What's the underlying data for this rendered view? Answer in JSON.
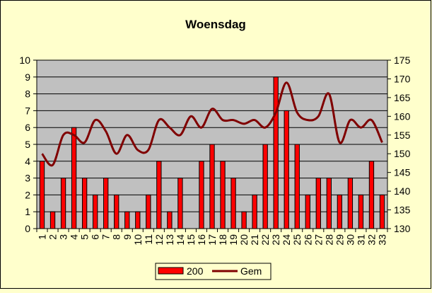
{
  "chart_data": {
    "type": "bar",
    "title": "Woensdag",
    "categories": [
      "1",
      "2",
      "3",
      "4",
      "5",
      "6",
      "7",
      "8",
      "9",
      "10",
      "11",
      "12",
      "13",
      "14",
      "15",
      "16",
      "17",
      "18",
      "19",
      "20",
      "21",
      "22",
      "23",
      "24",
      "25",
      "26",
      "27",
      "28",
      "29",
      "30",
      "31",
      "32",
      "33"
    ],
    "series": [
      {
        "name": "200",
        "type": "bar",
        "axis": "left",
        "values": [
          4,
          1,
          3,
          6,
          3,
          2,
          3,
          2,
          1,
          1,
          2,
          4,
          1,
          3,
          0,
          4,
          5,
          4,
          3,
          1,
          2,
          5,
          9,
          7,
          5,
          2,
          3,
          3,
          2,
          3,
          2,
          4,
          2
        ]
      },
      {
        "name": "Gem",
        "type": "line",
        "axis": "right",
        "smooth": true,
        "values": [
          150,
          147,
          155,
          155,
          153,
          159,
          156,
          150,
          155,
          151,
          151,
          159,
          157,
          155,
          160,
          157,
          162,
          159,
          159,
          158,
          159,
          157,
          161,
          169,
          161,
          159,
          160,
          166,
          153,
          159,
          157,
          159,
          153
        ]
      }
    ],
    "ylim": [
      0,
      10
    ],
    "y_ticks": [
      0,
      1,
      2,
      3,
      4,
      5,
      6,
      7,
      8,
      9,
      10
    ],
    "y2lim": [
      130,
      175
    ],
    "y2_ticks": [
      130,
      135,
      140,
      145,
      150,
      155,
      160,
      165,
      170,
      175
    ],
    "legend": {
      "position": "bottom"
    },
    "grid": true,
    "colors": {
      "bar": "#ff0000",
      "line": "#800000",
      "plot_bg": "#c0c0c0",
      "chart_bg": "#ffffcc"
    }
  }
}
